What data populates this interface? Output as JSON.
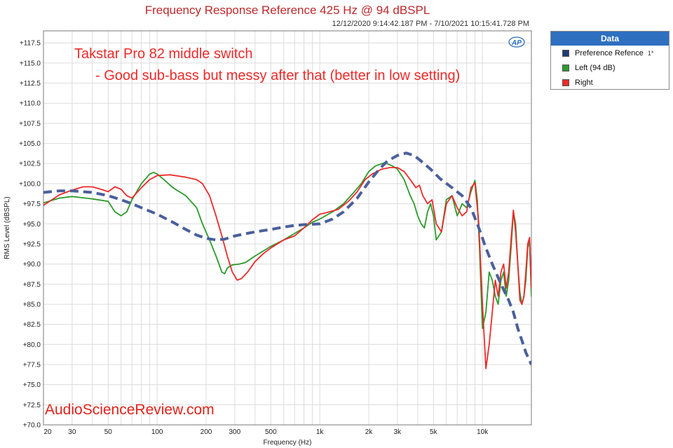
{
  "chart_data": {
    "type": "line",
    "title": "Frequency Response Reference 425 Hz @ 94 dBSPL",
    "subtitle": "12/12/2020 9:14:42.187 PM - 7/10/2021 10:15:41.728 PM",
    "xlabel": "Frequency (Hz)",
    "ylabel": "RMS Level (dBSPL)",
    "xscale": "log",
    "xlim": [
      20,
      20000
    ],
    "ylim": [
      70,
      119
    ],
    "grid": true,
    "x_ticks": [
      {
        "v": 20,
        "label": "20"
      },
      {
        "v": 30,
        "label": "30"
      },
      {
        "v": 50,
        "label": "50"
      },
      {
        "v": 100,
        "label": "100"
      },
      {
        "v": 200,
        "label": "200"
      },
      {
        "v": 300,
        "label": "300"
      },
      {
        "v": 500,
        "label": "500"
      },
      {
        "v": 1000,
        "label": "1k"
      },
      {
        "v": 2000,
        "label": "2k"
      },
      {
        "v": 3000,
        "label": "3k"
      },
      {
        "v": 5000,
        "label": "5k"
      },
      {
        "v": 10000,
        "label": "10k"
      }
    ],
    "y_ticks": [
      {
        "v": 117.5,
        "label": "+117.5"
      },
      {
        "v": 115,
        "label": "+115.0"
      },
      {
        "v": 112.5,
        "label": "+112.5"
      },
      {
        "v": 110,
        "label": "+110.0"
      },
      {
        "v": 107.5,
        "label": "+107.5"
      },
      {
        "v": 105,
        "label": "+105.0"
      },
      {
        "v": 102.5,
        "label": "+102.5"
      },
      {
        "v": 100,
        "label": "+100.0"
      },
      {
        "v": 97.5,
        "label": "+97.5"
      },
      {
        "v": 95,
        "label": "+95.0"
      },
      {
        "v": 92.5,
        "label": "+92.5"
      },
      {
        "v": 90,
        "label": "+90.0"
      },
      {
        "v": 87.5,
        "label": "+87.5"
      },
      {
        "v": 85,
        "label": "+85.0"
      },
      {
        "v": 82.5,
        "label": "+82.5"
      },
      {
        "v": 80,
        "label": "+80.0"
      },
      {
        "v": 77.5,
        "label": "+77.5"
      },
      {
        "v": 75,
        "label": "+75.0"
      },
      {
        "v": 72.5,
        "label": "+72.5"
      },
      {
        "v": 70,
        "label": "+70.0"
      }
    ],
    "legend": {
      "title": "Data",
      "placement": "top-right",
      "entries": [
        {
          "label": "Preference Refence",
          "color": "#1f3b73",
          "mark": "1*"
        },
        {
          "label": "Left (94 dB)",
          "color": "#2b9a2b",
          "mark": ""
        },
        {
          "label": "Right",
          "color": "#ee2a2a",
          "mark": ""
        }
      ]
    },
    "annotations": {
      "line1": "Takstar Pro 82 middle switch",
      "line2": "- Good sub-bass but messy after that (better in low setting)",
      "logo": "AP",
      "watermark": "AudioScienceReview.com"
    },
    "series": [
      {
        "name": "Preference Refence",
        "color": "#4a5f9c",
        "style": "dashed",
        "points": [
          [
            20,
            98.9
          ],
          [
            25,
            99.1
          ],
          [
            30,
            99.1
          ],
          [
            40,
            98.9
          ],
          [
            50,
            98.5
          ],
          [
            60,
            98.0
          ],
          [
            70,
            97.5
          ],
          [
            80,
            97.0
          ],
          [
            100,
            96.2
          ],
          [
            125,
            95.2
          ],
          [
            150,
            94.3
          ],
          [
            175,
            93.6
          ],
          [
            200,
            93.2
          ],
          [
            230,
            93.0
          ],
          [
            260,
            93.1
          ],
          [
            300,
            93.5
          ],
          [
            400,
            94.0
          ],
          [
            500,
            94.3
          ],
          [
            600,
            94.6
          ],
          [
            700,
            94.8
          ],
          [
            800,
            94.9
          ],
          [
            1000,
            95.0
          ],
          [
            1200,
            95.6
          ],
          [
            1400,
            96.5
          ],
          [
            1700,
            98.2
          ],
          [
            2000,
            100.2
          ],
          [
            2300,
            101.7
          ],
          [
            2600,
            102.8
          ],
          [
            3000,
            103.5
          ],
          [
            3400,
            103.8
          ],
          [
            3800,
            103.5
          ],
          [
            4200,
            102.8
          ],
          [
            4800,
            101.8
          ],
          [
            5500,
            100.6
          ],
          [
            6500,
            99.5
          ],
          [
            7500,
            98.5
          ],
          [
            8500,
            97.0
          ],
          [
            9500,
            94.5
          ],
          [
            10500,
            92.0
          ],
          [
            11500,
            90.0
          ],
          [
            12500,
            88.3
          ],
          [
            13500,
            86.8
          ],
          [
            14500,
            85.5
          ],
          [
            15500,
            84.0
          ],
          [
            16500,
            82.0
          ],
          [
            17500,
            80.5
          ],
          [
            18500,
            79.0
          ],
          [
            20000,
            77.5
          ]
        ]
      },
      {
        "name": "Left (94 dB)",
        "color": "#2b9a2b",
        "style": "solid",
        "points": [
          [
            20,
            97.6
          ],
          [
            25,
            98.2
          ],
          [
            30,
            98.4
          ],
          [
            40,
            98.1
          ],
          [
            50,
            97.8
          ],
          [
            55,
            96.5
          ],
          [
            60,
            96.0
          ],
          [
            65,
            96.5
          ],
          [
            70,
            98.0
          ],
          [
            80,
            100.0
          ],
          [
            90,
            101.2
          ],
          [
            95,
            101.4
          ],
          [
            100,
            101.2
          ],
          [
            110,
            100.5
          ],
          [
            125,
            99.5
          ],
          [
            150,
            98.5
          ],
          [
            175,
            97.0
          ],
          [
            190,
            95.0
          ],
          [
            210,
            93.0
          ],
          [
            230,
            91.0
          ],
          [
            250,
            89.0
          ],
          [
            260,
            88.8
          ],
          [
            270,
            89.5
          ],
          [
            290,
            89.9
          ],
          [
            320,
            90.0
          ],
          [
            350,
            90.2
          ],
          [
            400,
            91.0
          ],
          [
            500,
            92.2
          ],
          [
            600,
            93.0
          ],
          [
            700,
            93.8
          ],
          [
            800,
            94.5
          ],
          [
            900,
            95.2
          ],
          [
            1000,
            95.6
          ],
          [
            1200,
            96.5
          ],
          [
            1400,
            97.5
          ],
          [
            1600,
            98.8
          ],
          [
            1800,
            100.0
          ],
          [
            2000,
            101.5
          ],
          [
            2200,
            102.2
          ],
          [
            2500,
            102.6
          ],
          [
            2800,
            102.2
          ],
          [
            3000,
            101.8
          ],
          [
            3300,
            100.5
          ],
          [
            3600,
            98.5
          ],
          [
            3800,
            97.5
          ],
          [
            4000,
            96.0
          ],
          [
            4200,
            95.0
          ],
          [
            4400,
            94.5
          ],
          [
            4600,
            96.5
          ],
          [
            4800,
            97.5
          ],
          [
            5000,
            96.0
          ],
          [
            5200,
            93.0
          ],
          [
            5600,
            94.0
          ],
          [
            6000,
            98.0
          ],
          [
            6500,
            98.5
          ],
          [
            7000,
            96.0
          ],
          [
            7500,
            97.5
          ],
          [
            8000,
            97.0
          ],
          [
            8500,
            99.0
          ],
          [
            9000,
            100.4
          ],
          [
            9300,
            98.0
          ],
          [
            9600,
            92.0
          ],
          [
            10000,
            82.0
          ],
          [
            10500,
            84.0
          ],
          [
            11000,
            89.0
          ],
          [
            11500,
            88.0
          ],
          [
            12000,
            86.0
          ],
          [
            12500,
            85.0
          ],
          [
            13000,
            88.0
          ],
          [
            13500,
            89.0
          ],
          [
            14000,
            86.0
          ],
          [
            14500,
            88.0
          ],
          [
            15000,
            92.0
          ],
          [
            15500,
            96.5
          ],
          [
            16000,
            95.0
          ],
          [
            16500,
            90.0
          ],
          [
            17000,
            86.5
          ],
          [
            17500,
            85.0
          ],
          [
            18000,
            86.0
          ],
          [
            18500,
            88.0
          ],
          [
            19000,
            92.0
          ],
          [
            19500,
            93.0
          ],
          [
            20000,
            86.0
          ]
        ]
      },
      {
        "name": "Right",
        "color": "#ee2a2a",
        "style": "solid",
        "points": [
          [
            20,
            97.3
          ],
          [
            25,
            98.6
          ],
          [
            30,
            99.2
          ],
          [
            35,
            99.6
          ],
          [
            40,
            99.6
          ],
          [
            45,
            99.3
          ],
          [
            50,
            99.0
          ],
          [
            55,
            99.6
          ],
          [
            60,
            99.3
          ],
          [
            65,
            98.5
          ],
          [
            70,
            98.2
          ],
          [
            80,
            99.5
          ],
          [
            90,
            100.5
          ],
          [
            100,
            101.0
          ],
          [
            120,
            101.1
          ],
          [
            150,
            100.8
          ],
          [
            175,
            100.5
          ],
          [
            190,
            100.0
          ],
          [
            210,
            98.5
          ],
          [
            230,
            96.0
          ],
          [
            250,
            93.5
          ],
          [
            270,
            91.0
          ],
          [
            290,
            89.0
          ],
          [
            310,
            88.0
          ],
          [
            330,
            88.2
          ],
          [
            360,
            89.0
          ],
          [
            400,
            90.3
          ],
          [
            450,
            91.3
          ],
          [
            500,
            92.0
          ],
          [
            600,
            93.0
          ],
          [
            700,
            93.5
          ],
          [
            800,
            94.5
          ],
          [
            900,
            95.5
          ],
          [
            1000,
            96.2
          ],
          [
            1100,
            96.4
          ],
          [
            1300,
            96.8
          ],
          [
            1500,
            97.8
          ],
          [
            1700,
            99.0
          ],
          [
            1900,
            100.5
          ],
          [
            2100,
            101.2
          ],
          [
            2400,
            101.8
          ],
          [
            2700,
            102.0
          ],
          [
            3000,
            102.0
          ],
          [
            3300,
            101.5
          ],
          [
            3600,
            100.5
          ],
          [
            3900,
            99.5
          ],
          [
            4100,
            99.8
          ],
          [
            4300,
            98.5
          ],
          [
            4600,
            97.5
          ],
          [
            4900,
            98.0
          ],
          [
            5200,
            95.0
          ],
          [
            5600,
            94.0
          ],
          [
            6000,
            97.5
          ],
          [
            6500,
            98.5
          ],
          [
            7000,
            97.0
          ],
          [
            7500,
            96.0
          ],
          [
            8000,
            96.5
          ],
          [
            8500,
            99.5
          ],
          [
            9000,
            100.1
          ],
          [
            9500,
            95.0
          ],
          [
            10000,
            85.0
          ],
          [
            10500,
            77.0
          ],
          [
            11000,
            80.0
          ],
          [
            11500,
            84.0
          ],
          [
            12000,
            88.0
          ],
          [
            12500,
            86.0
          ],
          [
            13000,
            89.0
          ],
          [
            13500,
            90.0
          ],
          [
            14000,
            87.0
          ],
          [
            14500,
            89.0
          ],
          [
            15000,
            93.0
          ],
          [
            15500,
            96.7
          ],
          [
            16000,
            94.0
          ],
          [
            16500,
            90.0
          ],
          [
            17000,
            85.5
          ],
          [
            17500,
            85.0
          ],
          [
            18000,
            86.0
          ],
          [
            18500,
            89.0
          ],
          [
            19000,
            92.5
          ],
          [
            19500,
            93.3
          ],
          [
            20000,
            87.0
          ]
        ]
      }
    ]
  }
}
